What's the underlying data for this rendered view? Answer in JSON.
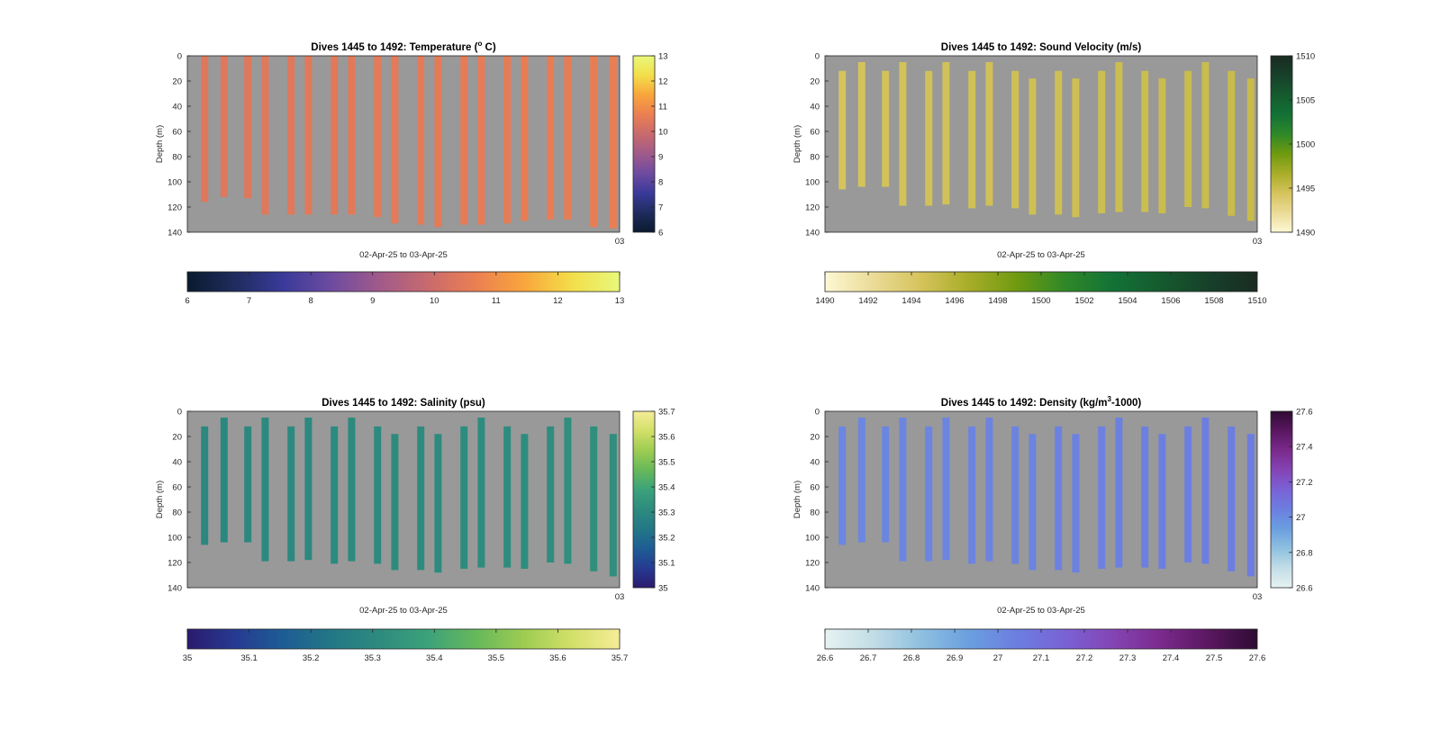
{
  "figure": {
    "background": "#ffffff",
    "axes_background": "#999999"
  },
  "chart_data": [
    {
      "type": "heatmap",
      "title_prefix": "Dives 1445 to 1492: Temperature (",
      "title_sup": "o",
      "title_suffix": " C)",
      "xlabel": "02-Apr-25 to 03-Apr-25",
      "ylabel": "Depth (m)",
      "corner_tick": "03",
      "ylim": [
        0,
        140
      ],
      "yticks": [
        0,
        20,
        40,
        60,
        80,
        100,
        120,
        140
      ],
      "clim": [
        6,
        13
      ],
      "cbar_ticks": [
        6,
        7,
        8,
        9,
        10,
        11,
        12,
        13
      ],
      "hcbar_ticks": [
        6,
        7,
        8,
        9,
        10,
        11,
        12,
        13
      ],
      "colormap": [
        "#0a1a2e",
        "#1f2c5e",
        "#3a3a9a",
        "#6e4ba0",
        "#a05a8a",
        "#c86a6e",
        "#eb7f52",
        "#f9a53c",
        "#f3de4a",
        "#e8f87a"
      ],
      "profile_value": 10.5,
      "profiles": [
        {
          "x": 0.04,
          "top": 0,
          "bottom": 116
        },
        {
          "x": 0.085,
          "top": 0,
          "bottom": 112
        },
        {
          "x": 0.14,
          "top": 0,
          "bottom": 113
        },
        {
          "x": 0.18,
          "top": 0,
          "bottom": 126
        },
        {
          "x": 0.24,
          "top": 0,
          "bottom": 126
        },
        {
          "x": 0.28,
          "top": 0,
          "bottom": 126
        },
        {
          "x": 0.34,
          "top": 0,
          "bottom": 126
        },
        {
          "x": 0.38,
          "top": 0,
          "bottom": 126
        },
        {
          "x": 0.44,
          "top": 0,
          "bottom": 128
        },
        {
          "x": 0.48,
          "top": 0,
          "bottom": 133
        },
        {
          "x": 0.54,
          "top": 0,
          "bottom": 134
        },
        {
          "x": 0.58,
          "top": 0,
          "bottom": 136
        },
        {
          "x": 0.64,
          "top": 0,
          "bottom": 134
        },
        {
          "x": 0.68,
          "top": 0,
          "bottom": 134
        },
        {
          "x": 0.74,
          "top": 0,
          "bottom": 133
        },
        {
          "x": 0.78,
          "top": 0,
          "bottom": 131
        },
        {
          "x": 0.84,
          "top": 0,
          "bottom": 130
        },
        {
          "x": 0.88,
          "top": 0,
          "bottom": 130
        },
        {
          "x": 0.94,
          "top": 0,
          "bottom": 136
        },
        {
          "x": 0.985,
          "top": 0,
          "bottom": 137
        }
      ]
    },
    {
      "type": "heatmap",
      "title_prefix": "Dives 1445 to 1492: Sound Velocity (m/s)",
      "title_sup": "",
      "title_suffix": "",
      "xlabel": "02-Apr-25 to 03-Apr-25",
      "ylabel": "Depth (m)",
      "corner_tick": "03",
      "ylim": [
        0,
        140
      ],
      "yticks": [
        0,
        20,
        40,
        60,
        80,
        100,
        120,
        140
      ],
      "clim": [
        1490,
        1510
      ],
      "cbar_ticks": [
        1490,
        1495,
        1500,
        1505,
        1510
      ],
      "hcbar_ticks": [
        1490,
        1492,
        1494,
        1496,
        1498,
        1500,
        1502,
        1504,
        1506,
        1508,
        1510
      ],
      "colormap": [
        "#fdf8d4",
        "#eadb97",
        "#d5c35c",
        "#a8ad28",
        "#6f9a10",
        "#2f8828",
        "#127236",
        "#155a2e",
        "#17402a",
        "#1a2b22"
      ],
      "profile_value": 1494.8,
      "profiles": [
        {
          "x": 0.04,
          "top": 12,
          "bottom": 106
        },
        {
          "x": 0.085,
          "top": 5,
          "bottom": 104
        },
        {
          "x": 0.14,
          "top": 12,
          "bottom": 104
        },
        {
          "x": 0.18,
          "top": 5,
          "bottom": 119
        },
        {
          "x": 0.24,
          "top": 12,
          "bottom": 119
        },
        {
          "x": 0.28,
          "top": 5,
          "bottom": 118
        },
        {
          "x": 0.34,
          "top": 12,
          "bottom": 121
        },
        {
          "x": 0.38,
          "top": 5,
          "bottom": 119
        },
        {
          "x": 0.44,
          "top": 12,
          "bottom": 121
        },
        {
          "x": 0.48,
          "top": 18,
          "bottom": 126
        },
        {
          "x": 0.54,
          "top": 12,
          "bottom": 126
        },
        {
          "x": 0.58,
          "top": 18,
          "bottom": 128
        },
        {
          "x": 0.64,
          "top": 12,
          "bottom": 125
        },
        {
          "x": 0.68,
          "top": 5,
          "bottom": 124
        },
        {
          "x": 0.74,
          "top": 12,
          "bottom": 124
        },
        {
          "x": 0.78,
          "top": 18,
          "bottom": 125
        },
        {
          "x": 0.84,
          "top": 12,
          "bottom": 120
        },
        {
          "x": 0.88,
          "top": 5,
          "bottom": 121
        },
        {
          "x": 0.94,
          "top": 12,
          "bottom": 127
        },
        {
          "x": 0.985,
          "top": 18,
          "bottom": 131
        }
      ]
    },
    {
      "type": "heatmap",
      "title_prefix": "Dives 1445 to 1492: Salinity (psu)",
      "title_sup": "",
      "title_suffix": "",
      "xlabel": "02-Apr-25 to 03-Apr-25",
      "ylabel": "Depth (m)",
      "corner_tick": "03",
      "ylim": [
        0,
        140
      ],
      "yticks": [
        0,
        20,
        40,
        60,
        80,
        100,
        120,
        140
      ],
      "clim": [
        35,
        35.7
      ],
      "cbar_ticks": [
        35,
        35.1,
        35.2,
        35.3,
        35.4,
        35.5,
        35.6,
        35.7
      ],
      "hcbar_ticks": [
        35,
        35.1,
        35.2,
        35.3,
        35.4,
        35.5,
        35.6,
        35.7
      ],
      "colormap": [
        "#2a1a6e",
        "#263b92",
        "#1d5d94",
        "#237786",
        "#2d8b7e",
        "#3ba27a",
        "#66b85a",
        "#9dcc52",
        "#d2e068",
        "#f6ec98"
      ],
      "profile_value": 35.31,
      "profiles": [
        {
          "x": 0.04,
          "top": 12,
          "bottom": 106
        },
        {
          "x": 0.085,
          "top": 5,
          "bottom": 104
        },
        {
          "x": 0.14,
          "top": 12,
          "bottom": 104
        },
        {
          "x": 0.18,
          "top": 5,
          "bottom": 119
        },
        {
          "x": 0.24,
          "top": 12,
          "bottom": 119
        },
        {
          "x": 0.28,
          "top": 5,
          "bottom": 118
        },
        {
          "x": 0.34,
          "top": 12,
          "bottom": 121
        },
        {
          "x": 0.38,
          "top": 5,
          "bottom": 119
        },
        {
          "x": 0.44,
          "top": 12,
          "bottom": 121
        },
        {
          "x": 0.48,
          "top": 18,
          "bottom": 126
        },
        {
          "x": 0.54,
          "top": 12,
          "bottom": 126
        },
        {
          "x": 0.58,
          "top": 18,
          "bottom": 128
        },
        {
          "x": 0.64,
          "top": 12,
          "bottom": 125
        },
        {
          "x": 0.68,
          "top": 5,
          "bottom": 124
        },
        {
          "x": 0.74,
          "top": 12,
          "bottom": 124
        },
        {
          "x": 0.78,
          "top": 18,
          "bottom": 125
        },
        {
          "x": 0.84,
          "top": 12,
          "bottom": 120
        },
        {
          "x": 0.88,
          "top": 5,
          "bottom": 121
        },
        {
          "x": 0.94,
          "top": 12,
          "bottom": 127
        },
        {
          "x": 0.985,
          "top": 18,
          "bottom": 131
        }
      ]
    },
    {
      "type": "heatmap",
      "title_prefix": "Dives 1445 to 1492: Density (kg/m",
      "title_sup": "3",
      "title_suffix": "-1000)",
      "xlabel": "02-Apr-25 to 03-Apr-25",
      "ylabel": "Depth (m)",
      "corner_tick": "03",
      "ylim": [
        0,
        140
      ],
      "yticks": [
        0,
        20,
        40,
        60,
        80,
        100,
        120,
        140
      ],
      "clim": [
        26.6,
        27.6
      ],
      "cbar_ticks": [
        26.6,
        26.8,
        27,
        27.2,
        27.4,
        27.6
      ],
      "hcbar_ticks": [
        26.6,
        26.7,
        26.8,
        26.9,
        27,
        27.1,
        27.2,
        27.3,
        27.4,
        27.5,
        27.6
      ],
      "colormap": [
        "#e6f2f2",
        "#c2dde6",
        "#8fc0e0",
        "#6a9fdf",
        "#6c7ee0",
        "#7a62d6",
        "#8444b4",
        "#7a2a8c",
        "#5a1760",
        "#2e0b33"
      ],
      "profile_value": 27.03,
      "profiles": [
        {
          "x": 0.04,
          "top": 12,
          "bottom": 106
        },
        {
          "x": 0.085,
          "top": 5,
          "bottom": 104
        },
        {
          "x": 0.14,
          "top": 12,
          "bottom": 104
        },
        {
          "x": 0.18,
          "top": 5,
          "bottom": 119
        },
        {
          "x": 0.24,
          "top": 12,
          "bottom": 119
        },
        {
          "x": 0.28,
          "top": 5,
          "bottom": 118
        },
        {
          "x": 0.34,
          "top": 12,
          "bottom": 121
        },
        {
          "x": 0.38,
          "top": 5,
          "bottom": 119
        },
        {
          "x": 0.44,
          "top": 12,
          "bottom": 121
        },
        {
          "x": 0.48,
          "top": 18,
          "bottom": 126
        },
        {
          "x": 0.54,
          "top": 12,
          "bottom": 126
        },
        {
          "x": 0.58,
          "top": 18,
          "bottom": 128
        },
        {
          "x": 0.64,
          "top": 12,
          "bottom": 125
        },
        {
          "x": 0.68,
          "top": 5,
          "bottom": 124
        },
        {
          "x": 0.74,
          "top": 12,
          "bottom": 124
        },
        {
          "x": 0.78,
          "top": 18,
          "bottom": 125
        },
        {
          "x": 0.84,
          "top": 12,
          "bottom": 120
        },
        {
          "x": 0.88,
          "top": 5,
          "bottom": 121
        },
        {
          "x": 0.94,
          "top": 12,
          "bottom": 127
        },
        {
          "x": 0.985,
          "top": 18,
          "bottom": 131
        }
      ]
    }
  ]
}
